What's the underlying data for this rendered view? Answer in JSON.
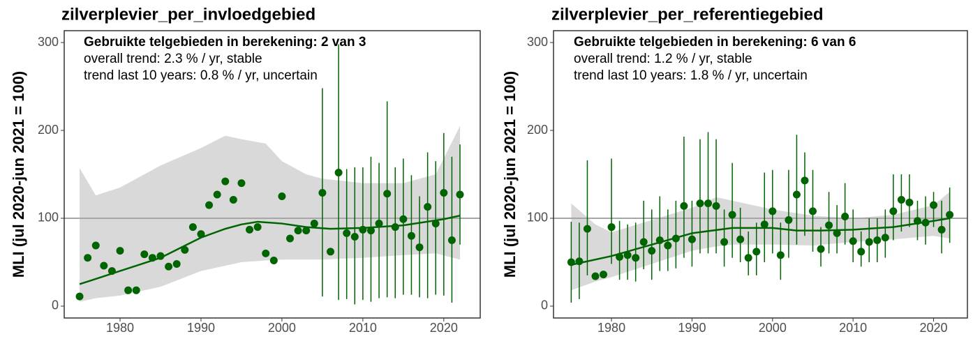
{
  "chart_data": [
    {
      "type": "trend",
      "title": "zilverplevier_per_invloedgebied",
      "ylabel": "MLI (jul 2020-jun 2021 = 100)",
      "annotations": [
        "Gebruikte telgebieden in berekening: 2 van 3",
        "overall trend: 2.3 % / yr, stable",
        "trend last 10 years: 0.8 % / yr, uncertain"
      ],
      "xlim": [
        1973.1,
        2024.5
      ],
      "ylim": [
        -13.5,
        313.5
      ],
      "xticks": [
        1980,
        1990,
        2000,
        2010,
        2020
      ],
      "yticks": [
        0,
        100,
        200,
        300
      ],
      "hline": 100,
      "color": "#006400",
      "band_color": "#d9d9d9",
      "hline_color": "#a6a6a6",
      "x": [
        1975,
        1976,
        1977,
        1978,
        1979,
        1980,
        1981,
        1982,
        1983,
        1984,
        1985,
        1986,
        1987,
        1988,
        1989,
        1990,
        1991,
        1992,
        1993,
        1994,
        1995,
        1996,
        1997,
        1998,
        1999,
        2000,
        2001,
        2002,
        2003,
        2004,
        2005,
        2006,
        2007,
        2008,
        2009,
        2010,
        2011,
        2012,
        2013,
        2014,
        2015,
        2016,
        2017,
        2018,
        2019,
        2020,
        2021,
        2022
      ],
      "values": [
        11,
        55,
        69,
        46,
        40,
        63,
        18,
        18,
        59,
        55,
        57,
        45,
        48,
        64,
        90,
        82,
        115,
        127,
        142,
        121,
        140,
        87,
        90,
        60,
        52,
        125,
        77,
        86,
        86,
        94,
        129,
        62,
        152,
        83,
        79,
        87,
        86,
        94,
        128,
        90,
        99,
        80,
        67,
        113,
        94,
        129,
        75,
        127
      ],
      "lower": [
        null,
        null,
        null,
        null,
        null,
        null,
        null,
        null,
        null,
        null,
        null,
        null,
        null,
        null,
        null,
        null,
        null,
        null,
        null,
        null,
        null,
        null,
        null,
        null,
        null,
        null,
        null,
        null,
        null,
        null,
        11,
        null,
        7,
        8,
        2,
        7,
        5,
        9,
        10,
        9,
        13,
        13,
        10,
        9,
        13,
        12,
        4,
        70
      ],
      "upper": [
        null,
        null,
        null,
        null,
        null,
        null,
        null,
        null,
        null,
        null,
        null,
        null,
        null,
        null,
        null,
        null,
        null,
        null,
        null,
        null,
        null,
        null,
        null,
        null,
        null,
        null,
        null,
        null,
        null,
        null,
        248,
        null,
        298,
        156,
        158,
        158,
        170,
        163,
        233,
        158,
        168,
        149,
        125,
        175,
        165,
        197,
        170,
        184
      ],
      "trend_x": [
        1975,
        1980,
        1985,
        1990,
        1993,
        1995,
        1997,
        2000,
        2003,
        2006,
        2010,
        2015,
        2020,
        2022
      ],
      "trend": [
        25,
        40,
        55,
        78,
        88,
        93,
        96,
        94,
        90,
        88,
        89,
        92,
        99,
        103
      ],
      "band_x": [
        1975,
        1977,
        1980,
        1985,
        1990,
        1993,
        1995,
        1998,
        2000,
        2003,
        2005,
        2010,
        2015,
        2019,
        2022
      ],
      "band_lower": [
        5,
        9,
        12,
        22,
        40,
        46,
        50,
        52,
        53,
        53,
        53,
        55,
        58,
        60,
        53
      ],
      "band_upper": [
        157,
        126,
        135,
        160,
        180,
        194,
        190,
        185,
        165,
        150,
        145,
        140,
        140,
        150,
        205
      ]
    },
    {
      "type": "trend",
      "title": "zilverplevier_per_referentiegebied",
      "ylabel": "MLI (jul 2020-jun 2021 = 100)",
      "annotations": [
        "Gebruikte telgebieden in berekening: 6 van 6",
        "overall trend: 1.2 % / yr, stable",
        "trend last 10 years: 1.8 % / yr, uncertain"
      ],
      "xlim": [
        1972.8,
        2024.2
      ],
      "ylim": [
        -13.5,
        313.5
      ],
      "xticks": [
        1980,
        1990,
        2000,
        2010,
        2020
      ],
      "yticks": [
        0,
        100,
        200,
        300
      ],
      "hline": 100,
      "color": "#006400",
      "band_color": "#d9d9d9",
      "hline_color": "#a6a6a6",
      "x": [
        1975,
        1976,
        1977,
        1978,
        1979,
        1980,
        1981,
        1982,
        1983,
        1984,
        1985,
        1986,
        1987,
        1988,
        1989,
        1990,
        1991,
        1992,
        1993,
        1994,
        1995,
        1996,
        1997,
        1998,
        1999,
        2000,
        2001,
        2002,
        2003,
        2004,
        2005,
        2006,
        2007,
        2008,
        2009,
        2010,
        2011,
        2012,
        2013,
        2014,
        2015,
        2016,
        2017,
        2018,
        2019,
        2020,
        2021,
        2022
      ],
      "values": [
        50,
        51,
        88,
        34,
        36,
        90,
        56,
        58,
        55,
        73,
        63,
        75,
        69,
        77,
        114,
        76,
        117,
        117,
        114,
        73,
        104,
        76,
        55,
        62,
        93,
        108,
        58,
        98,
        127,
        143,
        108,
        65,
        92,
        83,
        102,
        74,
        62,
        73,
        75,
        78,
        108,
        121,
        118,
        97,
        95,
        115,
        87,
        104
      ],
      "lower": [
        4,
        8,
        35,
        null,
        null,
        48,
        30,
        30,
        28,
        42,
        30,
        40,
        40,
        43,
        55,
        45,
        60,
        60,
        60,
        45,
        55,
        50,
        35,
        35,
        50,
        60,
        30,
        55,
        70,
        80,
        62,
        45,
        60,
        60,
        70,
        50,
        45,
        50,
        50,
        55,
        75,
        85,
        90,
        75,
        70,
        90,
        60,
        72
      ],
      "upper": [
        96,
        95,
        166,
        null,
        null,
        168,
        97,
        93,
        95,
        120,
        110,
        125,
        110,
        120,
        193,
        120,
        190,
        198,
        190,
        110,
        163,
        112,
        85,
        95,
        152,
        155,
        95,
        155,
        195,
        175,
        155,
        90,
        130,
        115,
        140,
        110,
        85,
        100,
        100,
        110,
        150,
        150,
        150,
        120,
        125,
        130,
        120,
        135
      ],
      "trend_x": [
        1975,
        1980,
        1985,
        1990,
        1995,
        2000,
        2003,
        2006,
        2010,
        2015,
        2020,
        2022
      ],
      "trend": [
        47,
        57,
        70,
        83,
        89,
        89,
        86,
        86,
        87,
        90,
        97,
        100
      ],
      "band_x": [
        1975,
        1978,
        1980,
        1985,
        1990,
        1993,
        1995,
        2000,
        2005,
        2010,
        2015,
        2020,
        2022
      ],
      "band_lower": [
        18,
        28,
        33,
        48,
        63,
        68,
        70,
        70,
        69,
        73,
        76,
        80,
        77
      ],
      "band_upper": [
        117,
        93,
        84,
        98,
        112,
        124,
        120,
        110,
        103,
        100,
        104,
        115,
        130
      ]
    }
  ]
}
